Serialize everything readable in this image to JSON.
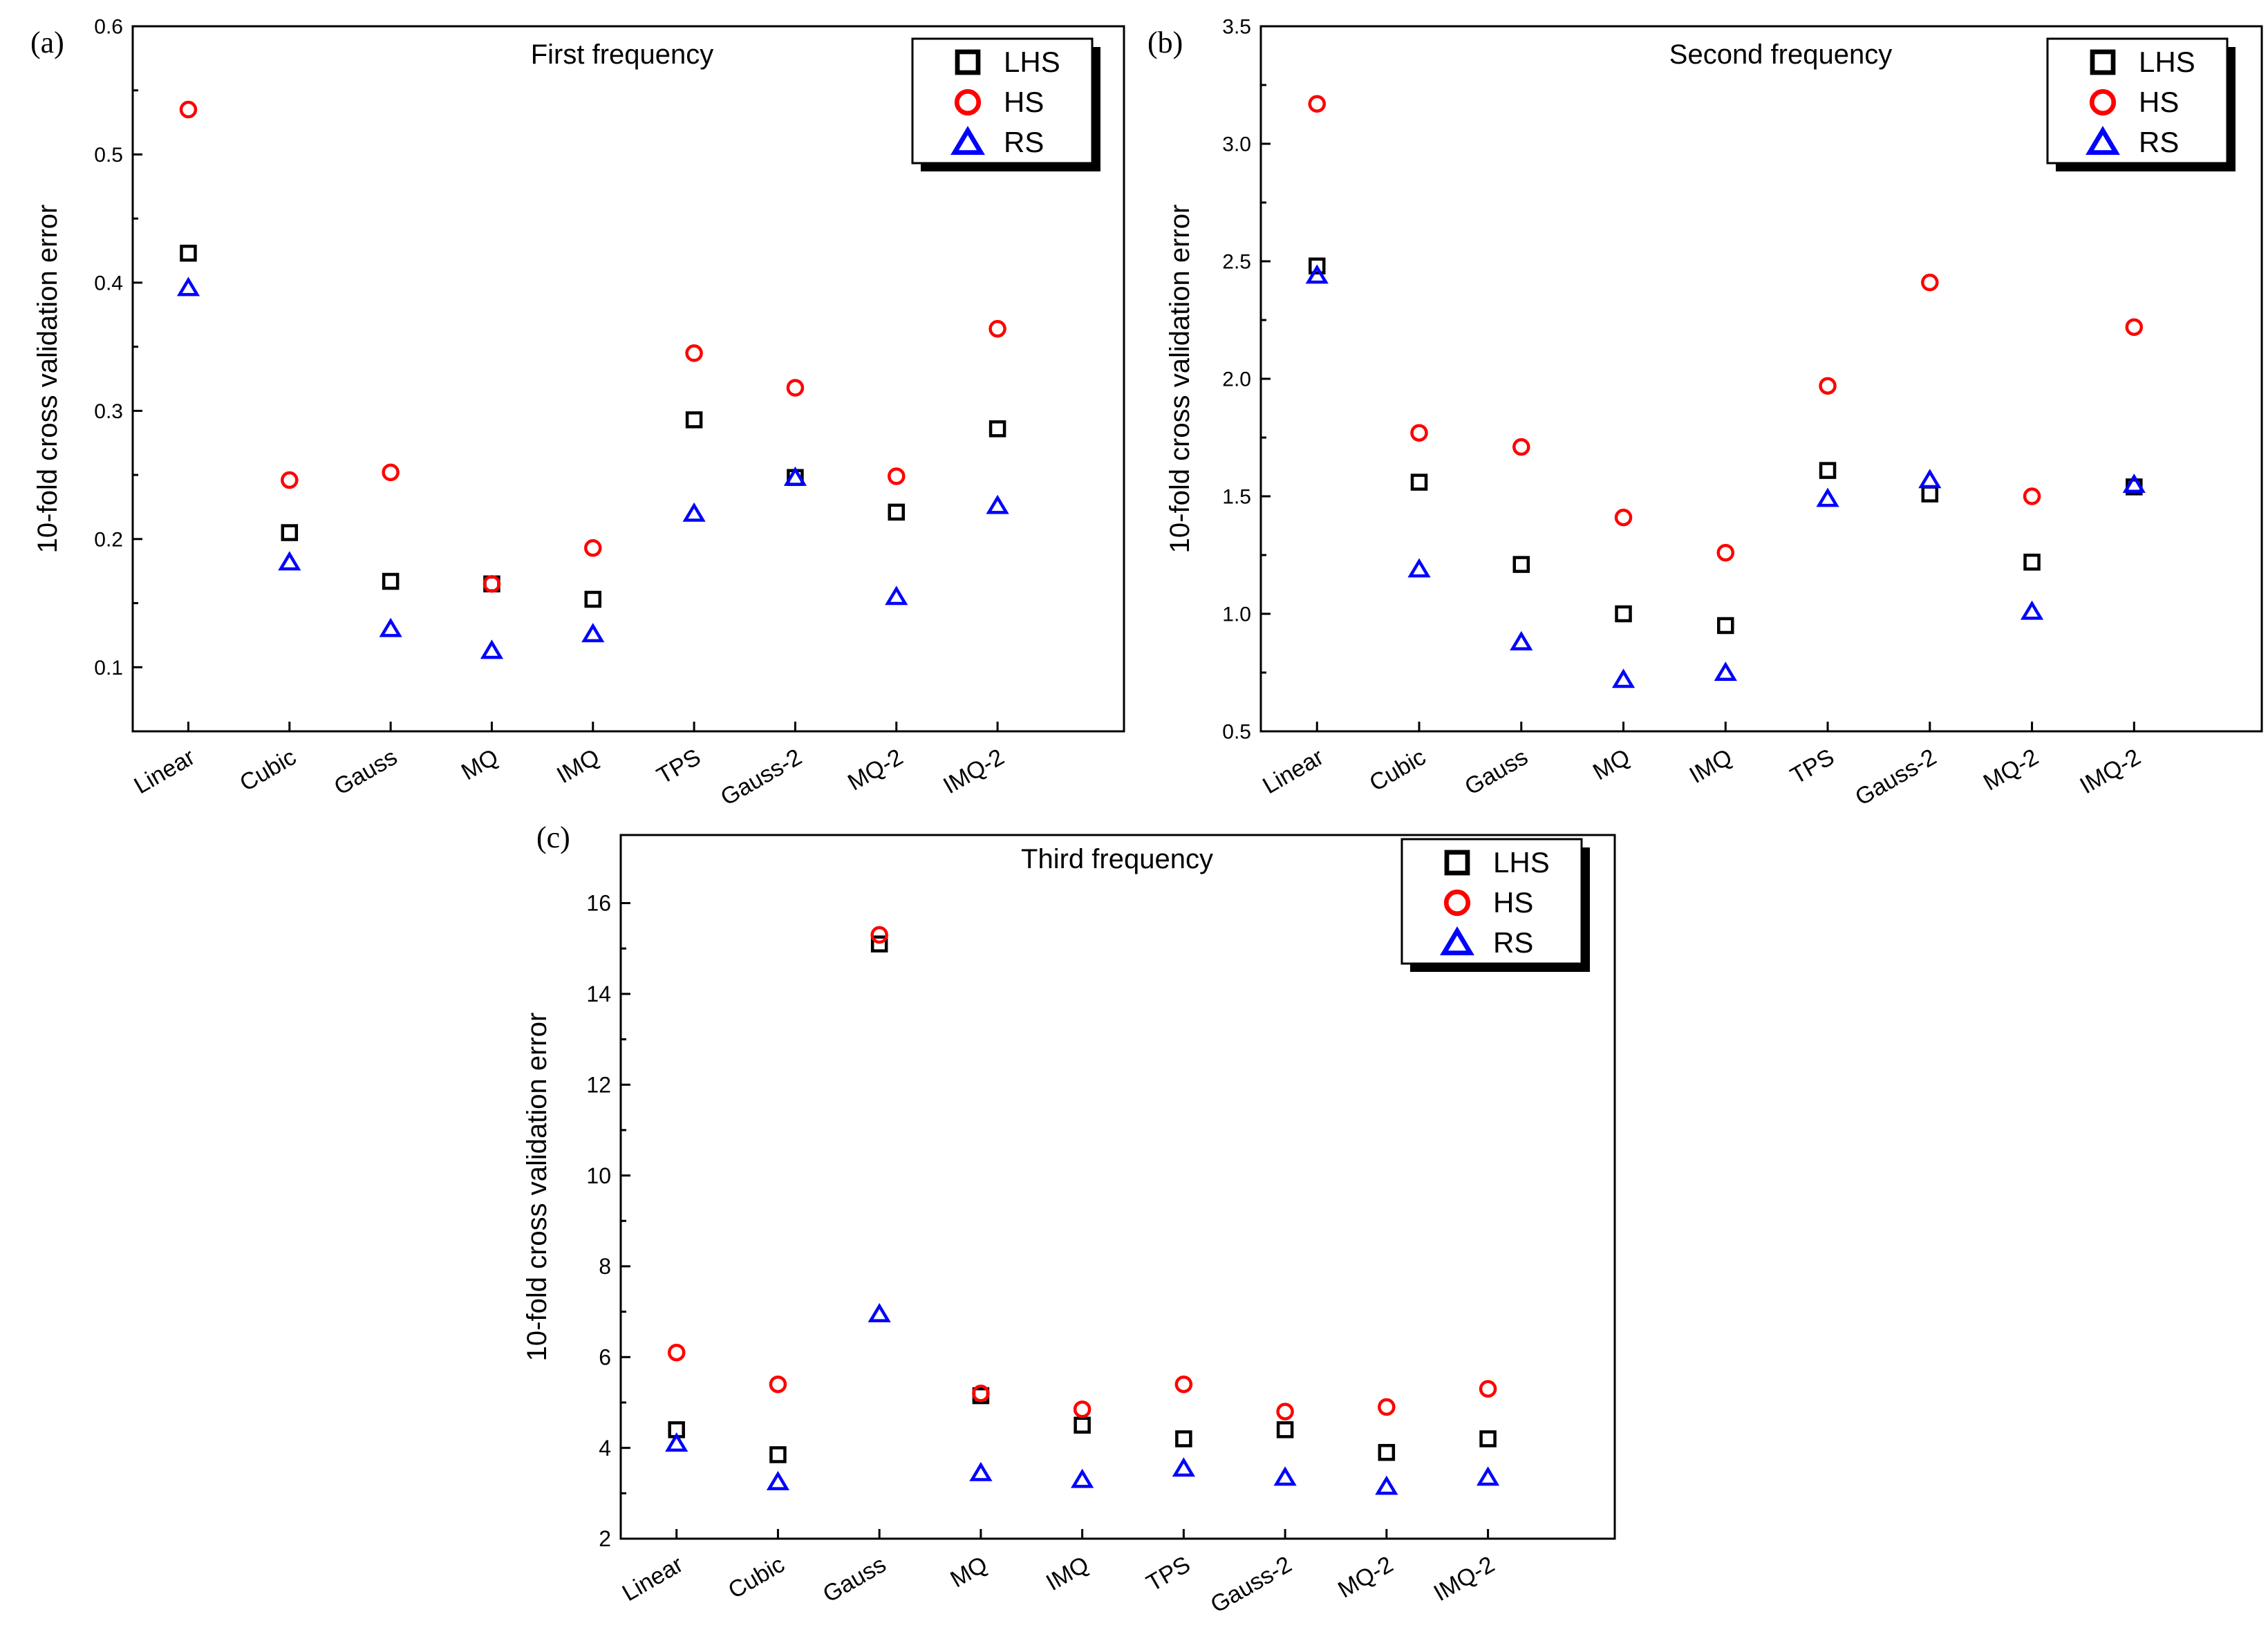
{
  "chart_data": [
    {
      "type": "scatter",
      "panel_label": "(a)",
      "title": "First frequency",
      "xlabel": "",
      "ylabel": "10-fold cross validation error",
      "categories": [
        "Linear",
        "Cubic",
        "Gauss",
        "MQ",
        "IMQ",
        "TPS",
        "Gauss-2",
        "MQ-2",
        "IMQ-2"
      ],
      "ylim": [
        0.05,
        0.6
      ],
      "yticks": [
        0.1,
        0.2,
        0.3,
        0.4,
        0.5,
        0.6
      ],
      "ytick_labels": [
        "0.1",
        "0.2",
        "0.3",
        "0.4",
        "0.5",
        "0.6"
      ],
      "legend_position": "top-right",
      "series": [
        {
          "name": "LHS",
          "marker": "square",
          "color": "#000000",
          "values": [
            0.423,
            0.205,
            0.167,
            0.165,
            0.153,
            0.293,
            0.248,
            0.221,
            0.286
          ]
        },
        {
          "name": "HS",
          "marker": "circle",
          "color": "#ff0000",
          "values": [
            0.535,
            0.246,
            0.252,
            0.165,
            0.193,
            0.345,
            0.318,
            0.249,
            0.364
          ]
        },
        {
          "name": "RS",
          "marker": "triangle",
          "color": "#0000ff",
          "values": [
            0.396,
            0.182,
            0.13,
            0.113,
            0.126,
            0.22,
            0.248,
            0.155,
            0.226
          ]
        }
      ]
    },
    {
      "type": "scatter",
      "panel_label": "(b)",
      "title": "Second frequency",
      "xlabel": "",
      "ylabel": "10-fold cross validation error",
      "categories": [
        "Linear",
        "Cubic",
        "Gauss",
        "MQ",
        "IMQ",
        "TPS",
        "Gauss-2",
        "MQ-2",
        "IMQ-2"
      ],
      "ylim": [
        0.5,
        3.5
      ],
      "yticks": [
        0.5,
        1.0,
        1.5,
        2.0,
        2.5,
        3.0,
        3.5
      ],
      "ytick_labels": [
        "0.5",
        "1.0",
        "1.5",
        "2.0",
        "2.5",
        "3.0",
        "3.5"
      ],
      "legend_position": "top-right",
      "series": [
        {
          "name": "LHS",
          "marker": "square",
          "color": "#000000",
          "values": [
            2.48,
            1.56,
            1.21,
            1.0,
            0.95,
            1.61,
            1.51,
            1.22,
            1.54
          ]
        },
        {
          "name": "HS",
          "marker": "circle",
          "color": "#ff0000",
          "values": [
            3.17,
            1.77,
            1.71,
            1.41,
            1.26,
            1.97,
            2.41,
            1.5,
            2.22
          ]
        },
        {
          "name": "RS",
          "marker": "triangle",
          "color": "#0000ff",
          "values": [
            2.44,
            1.19,
            0.88,
            0.72,
            0.75,
            1.49,
            1.57,
            1.01,
            1.55
          ]
        }
      ]
    },
    {
      "type": "scatter",
      "panel_label": "(c)",
      "title": "Third frequency",
      "xlabel": "",
      "ylabel": "10-fold cross validation error",
      "categories": [
        "Linear",
        "Cubic",
        "Gauss",
        "MQ",
        "IMQ",
        "TPS",
        "Gauss-2",
        "MQ-2",
        "IMQ-2"
      ],
      "ylim": [
        2,
        17.5
      ],
      "yticks": [
        2,
        4,
        6,
        8,
        10,
        12,
        14,
        16
      ],
      "ytick_labels": [
        "2",
        "4",
        "6",
        "8",
        "10",
        "12",
        "14",
        "16"
      ],
      "legend_position": "top-right",
      "series": [
        {
          "name": "LHS",
          "marker": "square",
          "color": "#000000",
          "values": [
            4.4,
            3.85,
            15.1,
            5.15,
            4.5,
            4.2,
            4.4,
            3.9,
            4.2
          ]
        },
        {
          "name": "HS",
          "marker": "circle",
          "color": "#ff0000",
          "values": [
            6.1,
            5.4,
            15.3,
            5.2,
            4.85,
            5.4,
            4.8,
            4.9,
            5.3
          ]
        },
        {
          "name": "RS",
          "marker": "triangle",
          "color": "#0000ff",
          "values": [
            4.1,
            3.25,
            6.95,
            3.45,
            3.3,
            3.55,
            3.35,
            3.15,
            3.35
          ]
        }
      ]
    }
  ]
}
